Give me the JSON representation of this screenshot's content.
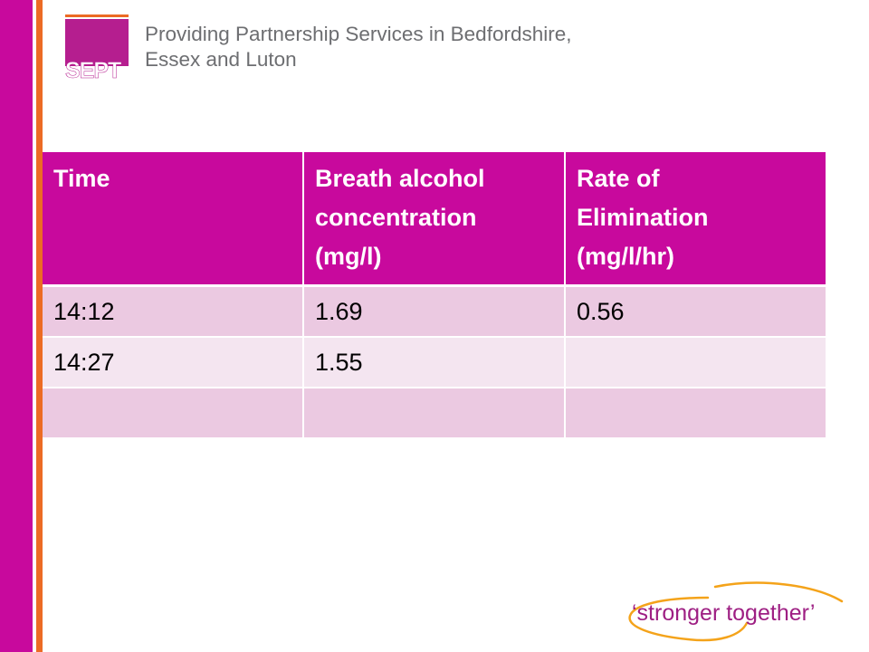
{
  "header": {
    "logo_text": "SEPT",
    "title_line1": "Providing Partnership Services in Bedfordshire,",
    "title_line2": "Essex and Luton"
  },
  "table": {
    "headers": [
      {
        "line1": "Time",
        "line2": "",
        "line3": ""
      },
      {
        "line1": "Breath alcohol",
        "line2": "concentration",
        "line3": "(mg/l)"
      },
      {
        "line1": "Rate of",
        "line2": "Elimination",
        "line3": "(mg/l/hr)"
      }
    ],
    "rows": [
      [
        "14:12",
        "1.69",
        "0.56"
      ],
      [
        "14:27",
        "1.55",
        ""
      ],
      [
        "",
        "",
        ""
      ]
    ]
  },
  "footer": {
    "slogan": "‘stronger together’"
  },
  "colors": {
    "primary_magenta": "#c8099d",
    "accent_orange": "#ec6b24",
    "row_odd": "#ebc9e1",
    "row_even": "#f4e5f0",
    "header_text_gray": "#6d6e71",
    "slogan_purple": "#9e1f83"
  }
}
